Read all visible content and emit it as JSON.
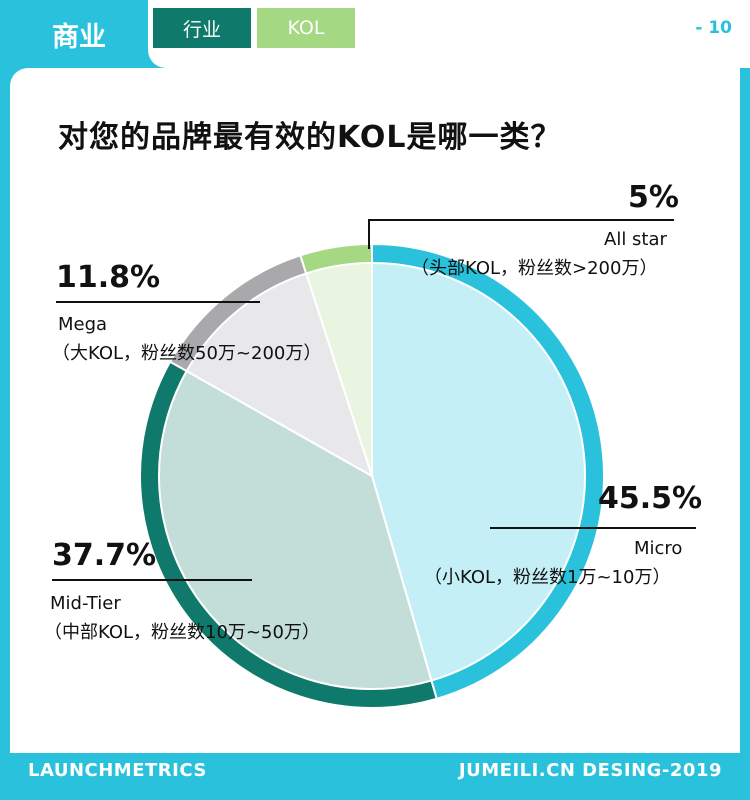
{
  "header": {
    "section": "商业",
    "tabs": [
      "行业",
      "KOL"
    ],
    "page_number": "- 10"
  },
  "question": "对您的品牌最有效的KOL是哪一类？",
  "chart_data": {
    "type": "pie",
    "title": "对您的品牌最有效的KOL是哪一类？",
    "slices": [
      {
        "name": "Micro",
        "desc": "（小KOL，粉丝数1万~10万）",
        "value": 45.5,
        "label": "45.5%",
        "outer_color": "#29c1db",
        "inner_color": "#c5eff7"
      },
      {
        "name": "Mid-Tier",
        "desc": "（中部KOL，粉丝数10万~50万）",
        "value": 37.7,
        "label": "37.7%",
        "outer_color": "#0f7a6c",
        "inner_color": "#c3ddd9"
      },
      {
        "name": "Mega",
        "desc": "（大KOL，粉丝数50万~200万）",
        "value": 11.8,
        "label": "11.8%",
        "outer_color": "#a9a9ac",
        "inner_color": "#e8e8ea"
      },
      {
        "name": "All star",
        "desc": "（头部KOL，粉丝数>200万）",
        "value": 5,
        "label": "5%",
        "outer_color": "#a5d883",
        "inner_color": "#eaf5e1"
      }
    ]
  },
  "footer": {
    "left": "LAUNCHMETRICS",
    "right": "JUMEILI.CN DESING-2019"
  }
}
